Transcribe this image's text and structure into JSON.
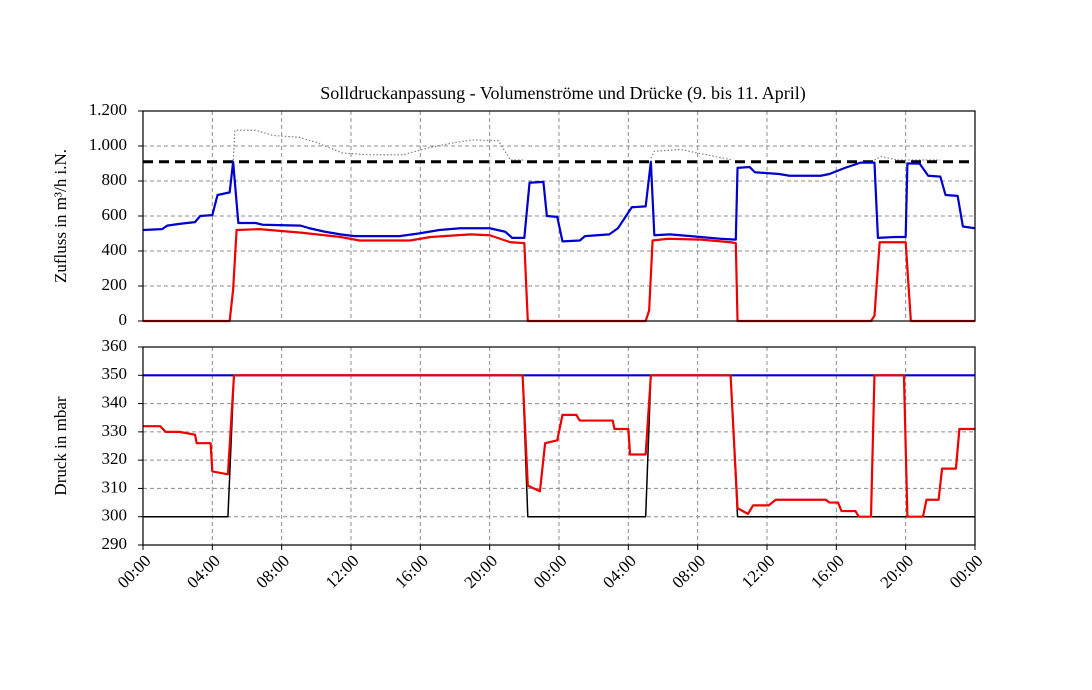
{
  "chart_data": [
    {
      "type": "line",
      "title": "Solldruckanpassung  - Volumenströme und Drücke (9. bis 11. April)",
      "ylabel": "Zufluss in m³/h i.N.",
      "ylim": [
        0,
        1200
      ],
      "yticks": [
        0,
        200,
        400,
        600,
        800,
        {
          "value": 1000,
          "label": "1.000"
        },
        {
          "value": 1200,
          "label": "1.200"
        }
      ],
      "xlim": [
        0,
        48
      ],
      "grid": true,
      "series": [
        {
          "color": "#808080",
          "linestyle": "dotted",
          "x": [
            5.2,
            5.3,
            6.5,
            7.5,
            9,
            10,
            11.5,
            13,
            15,
            16.5,
            18,
            19,
            20.5,
            21.2,
            22.0,
            null,
            29.3,
            29.5,
            31,
            32,
            33,
            34,
            null,
            42.2,
            42.6,
            43.5,
            46
          ],
          "values": [
            900,
            1090,
            1090,
            1060,
            1050,
            1020,
            960,
            950,
            950,
            990,
            1020,
            1035,
            1030,
            920,
            920,
            null,
            930,
            970,
            980,
            960,
            940,
            920,
            null,
            920,
            940,
            920,
            920
          ]
        },
        {
          "color": "#000000",
          "linestyle": "dashed",
          "x": [
            0,
            48
          ],
          "values": [
            910,
            910
          ]
        },
        {
          "color": "#0000cc",
          "linestyle": "solid",
          "x": [
            0,
            1.1,
            1.4,
            2.1,
            3.0,
            3.3,
            4.0,
            4.3,
            5.0,
            5.2,
            5.5,
            6.5,
            6.9,
            9.1,
            9.6,
            10.5,
            11.4,
            12.2,
            14.8,
            15.9,
            17.1,
            18.3,
            20.0,
            20.9,
            21.3,
            22.0,
            22.3,
            23.1,
            23.3,
            23.9,
            24.2,
            25.2,
            25.5,
            26.9,
            27.4,
            28.2,
            29.0,
            29.3,
            29.5,
            30.4,
            31.6,
            33.3,
            34.2,
            34.3,
            35.0,
            35.3,
            36.7,
            37.3,
            39.1,
            39.6,
            40.5,
            41.4,
            42.2,
            42.4,
            43.4,
            44.0,
            44.1,
            44.8,
            45.3,
            46.0,
            46.3,
            47.0,
            47.3,
            48
          ],
          "values": [
            520,
            525,
            545,
            555,
            565,
            600,
            605,
            720,
            735,
            910,
            560,
            560,
            550,
            545,
            530,
            510,
            495,
            485,
            485,
            500,
            520,
            530,
            530,
            510,
            475,
            475,
            790,
            795,
            600,
            595,
            455,
            460,
            485,
            495,
            530,
            650,
            655,
            910,
            490,
            495,
            485,
            470,
            465,
            875,
            880,
            850,
            840,
            830,
            830,
            840,
            875,
            905,
            905,
            475,
            480,
            480,
            900,
            900,
            830,
            825,
            720,
            715,
            540,
            530
          ]
        },
        {
          "color": "#ee0000",
          "linestyle": "solid",
          "x": [
            0,
            5.0,
            5.2,
            5.4,
            6.7,
            9.1,
            11.4,
            12.5,
            15.4,
            16.6,
            18.9,
            20.0,
            21.2,
            22.0,
            22.2,
            29.0,
            29.2,
            29.4,
            30.3,
            32.2,
            33.9,
            34.2,
            34.3,
            42.0,
            42.2,
            42.5,
            44.0,
            44.3,
            48
          ],
          "values": [
            0,
            0,
            180,
            520,
            525,
            505,
            480,
            460,
            460,
            480,
            495,
            490,
            450,
            445,
            0,
            0,
            60,
            460,
            470,
            465,
            450,
            445,
            0,
            0,
            30,
            450,
            450,
            0,
            0
          ]
        }
      ]
    },
    {
      "type": "line",
      "ylabel": "Druck in mbar",
      "ylim": [
        290,
        360
      ],
      "yticks": [
        290,
        300,
        310,
        320,
        330,
        340,
        350,
        360
      ],
      "xlim": [
        0,
        48
      ],
      "xticks": [
        {
          "value": 0,
          "label": "00:00"
        },
        {
          "value": 4,
          "label": "04:00"
        },
        {
          "value": 8,
          "label": "08:00"
        },
        {
          "value": 12,
          "label": "12:00"
        },
        {
          "value": 16,
          "label": "16:00"
        },
        {
          "value": 20,
          "label": "20:00"
        },
        {
          "value": 24,
          "label": "00:00"
        },
        {
          "value": 28,
          "label": "04:00"
        },
        {
          "value": 32,
          "label": "08:00"
        },
        {
          "value": 36,
          "label": "12:00"
        },
        {
          "value": 40,
          "label": "16:00"
        },
        {
          "value": 44,
          "label": "20:00"
        },
        {
          "value": 48,
          "label": "00:00"
        }
      ],
      "grid": true,
      "series": [
        {
          "color": "#000000",
          "linestyle": "thin",
          "x": [
            0,
            4.9,
            5.25,
            21.9,
            22.2,
            29.0,
            29.3,
            33.9,
            34.3,
            48
          ],
          "values": [
            300,
            300,
            350,
            350,
            300,
            300,
            350,
            350,
            300,
            300
          ]
        },
        {
          "color": "#0000cc",
          "linestyle": "solid",
          "x": [
            0,
            48
          ],
          "values": [
            350,
            350
          ]
        },
        {
          "color": "#ee0000",
          "linestyle": "solid",
          "x": [
            0,
            1.0,
            1.3,
            2.1,
            3.0,
            3.1,
            3.9,
            4.0,
            4.9,
            5.25,
            21.9,
            22.2,
            22.9,
            23.2,
            23.9,
            24.2,
            25.0,
            25.2,
            27.1,
            27.2,
            28.0,
            28.1,
            29.0,
            29.3,
            33.9,
            34.3,
            34.9,
            35.2,
            36.1,
            36.5,
            39.4,
            39.6,
            40.1,
            40.3,
            41.1,
            41.3,
            42.0,
            42.2,
            43.9,
            44.1,
            45.0,
            45.2,
            45.9,
            46.1,
            46.9,
            47.1,
            48
          ],
          "values": [
            332,
            332,
            330,
            330,
            329,
            326,
            326,
            316,
            315,
            350,
            350,
            311,
            309,
            326,
            327,
            336,
            336,
            334,
            334,
            331,
            331,
            322,
            322,
            350,
            350,
            303,
            301,
            304,
            304,
            306,
            306,
            305,
            305,
            302,
            302,
            300,
            300,
            350,
            350,
            300,
            300,
            306,
            306,
            317,
            317,
            331,
            331
          ]
        }
      ]
    }
  ]
}
